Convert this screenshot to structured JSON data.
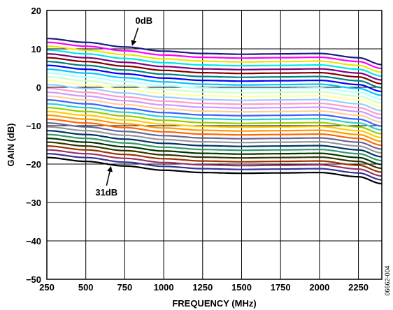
{
  "chart_data": {
    "type": "line",
    "title": "",
    "xlabel": "FREQUENCY (MHz)",
    "ylabel": "GAIN (dB)",
    "xlim": [
      250,
      2400
    ],
    "ylim": [
      -50,
      20
    ],
    "xticks": [
      250,
      500,
      750,
      1000,
      1250,
      1500,
      1750,
      2000,
      2250
    ],
    "yticks": [
      20,
      10,
      0,
      -10,
      -20,
      -30,
      -40,
      -50
    ],
    "grid": true,
    "legend": "none",
    "frequency": [
      250,
      500,
      750,
      1000,
      1250,
      1500,
      1750,
      2000,
      2250,
      2400
    ],
    "curve_shape_offset_db": [
      0.0,
      -1.0,
      -2.2,
      -3.3,
      -3.9,
      -4.1,
      -4.0,
      -3.9,
      -5.0,
      -6.8
    ],
    "attenuation_steps_db": [
      0,
      1,
      2,
      3,
      4,
      5,
      6,
      7,
      8,
      9,
      10,
      11,
      12,
      13,
      14,
      15,
      16,
      17,
      18,
      19,
      20,
      21,
      22,
      23,
      24,
      25,
      26,
      27,
      28,
      29,
      30,
      31
    ],
    "top_curve_gain_at_250mhz_db": 12.7,
    "series_colors": [
      "#1a1a80",
      "#ff00ff",
      "#e6e600",
      "#00e6e6",
      "#800080",
      "#800000",
      "#008080",
      "#0000ff",
      "#00c8ff",
      "#b4ffff",
      "#ccffcc",
      "#ffff99",
      "#99ccff",
      "#ff99cc",
      "#cc99ff",
      "#ffcc99",
      "#3366ff",
      "#33cccc",
      "#99cc00",
      "#ffcc00",
      "#ff9900",
      "#ff6600",
      "#666699",
      "#969696",
      "#003366",
      "#339966",
      "#003300",
      "#333300",
      "#993300",
      "#993366",
      "#333399",
      "#000000"
    ],
    "annotations": [
      {
        "text": "0dB",
        "series_index": 0,
        "frequency": 800
      },
      {
        "text": "31dB",
        "series_index": 31,
        "frequency": 660
      }
    ],
    "figure_code": "06662-004"
  }
}
